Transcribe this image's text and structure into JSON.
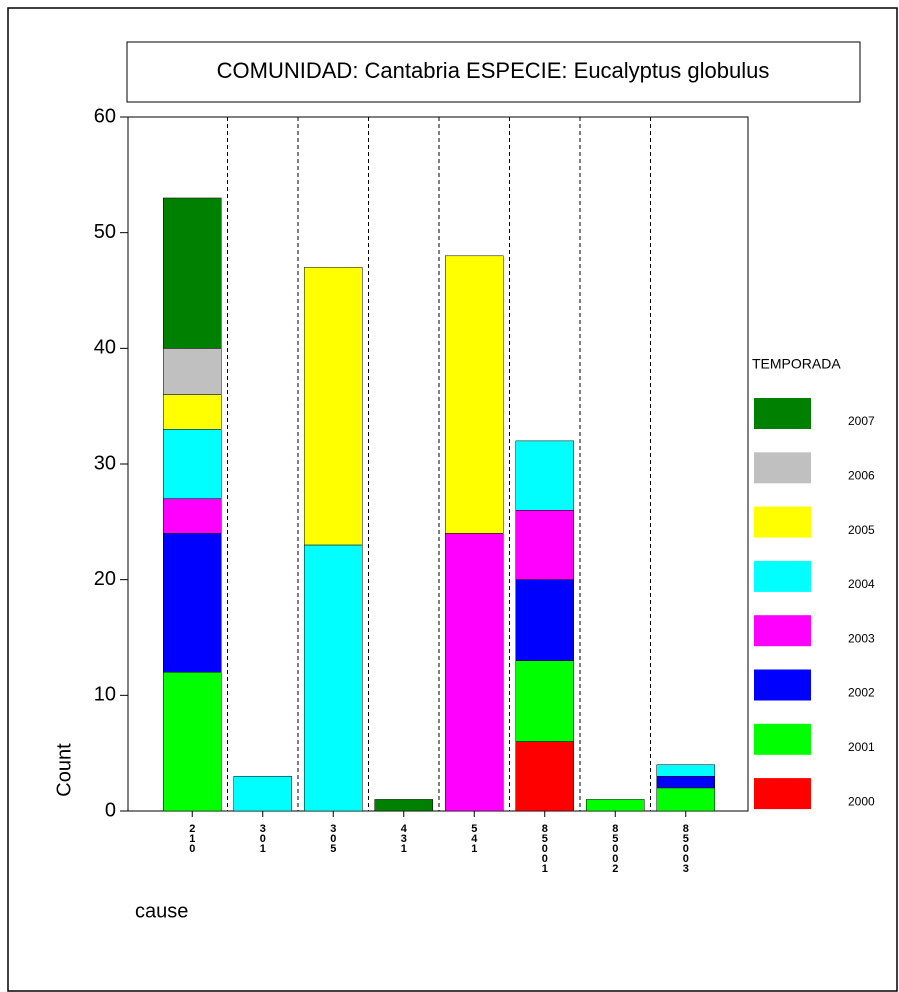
{
  "chart_data": {
    "type": "bar",
    "stacked": true,
    "title": "COMUNIDAD: Cantabria  ESPECIE: Eucalyptus globulus",
    "y_label": "Count",
    "x_label": "cause",
    "legend_title": "TEMPORADA",
    "categories": [
      "210",
      "301",
      "305",
      "431",
      "541",
      "85001",
      "85002",
      "85003"
    ],
    "series": [
      {
        "name": "2000",
        "color": "#ff0000",
        "values": [
          null,
          null,
          null,
          null,
          null,
          6,
          null,
          null
        ]
      },
      {
        "name": "2001",
        "color": "#00ff00",
        "values": [
          12,
          null,
          null,
          null,
          null,
          7,
          1,
          2
        ]
      },
      {
        "name": "2002",
        "color": "#0000ff",
        "values": [
          12,
          null,
          null,
          null,
          null,
          7,
          null,
          1
        ]
      },
      {
        "name": "2003",
        "color": "#ff00ff",
        "values": [
          3,
          null,
          null,
          null,
          24,
          6,
          null,
          null
        ]
      },
      {
        "name": "2004",
        "color": "#00ffff",
        "values": [
          6,
          3,
          23,
          null,
          null,
          6,
          null,
          1
        ]
      },
      {
        "name": "2005",
        "color": "#ffff00",
        "values": [
          3,
          null,
          24,
          null,
          24,
          null,
          null,
          null
        ]
      },
      {
        "name": "2006",
        "color": "#c0c0c0",
        "values": [
          4,
          null,
          null,
          null,
          null,
          null,
          null,
          null
        ]
      },
      {
        "name": "2007",
        "color": "#008000",
        "values": [
          13,
          null,
          null,
          1,
          null,
          null,
          null,
          null
        ]
      }
    ],
    "ylim": [
      0,
      60
    ],
    "yticks": [
      0,
      10,
      20,
      30,
      40,
      50,
      60
    ]
  }
}
